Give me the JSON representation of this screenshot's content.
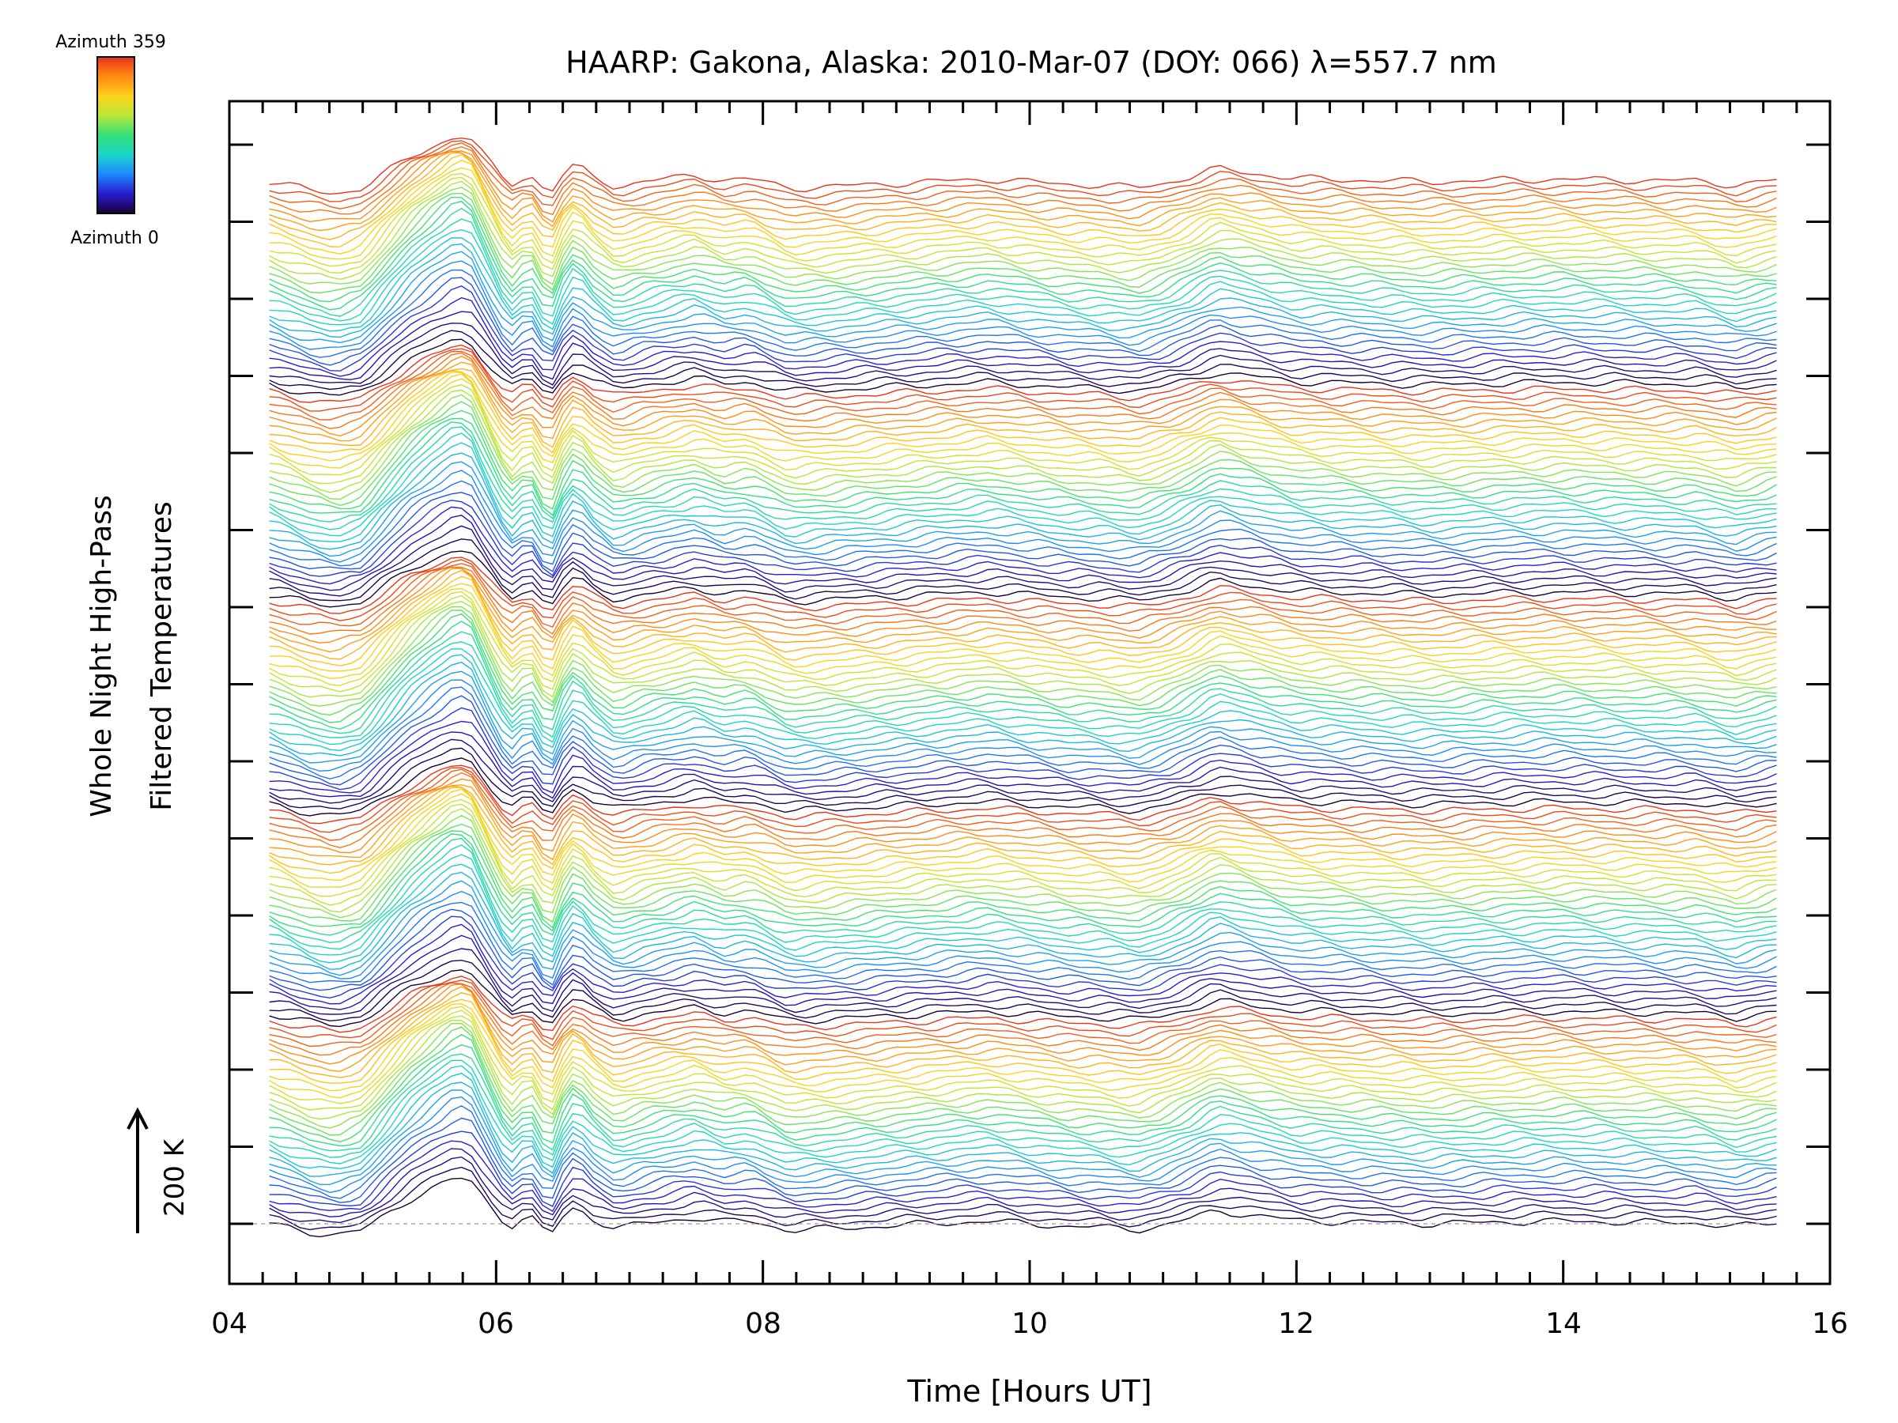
{
  "chart_data": {
    "type": "line",
    "title": "HAARP: Gakona,  Alaska: 2010-Mar-07 (DOY: 066) λ=557.7 nm",
    "xlabel": "Time [Hours UT]",
    "ylabel_line1": "Whole Night High-Pass",
    "ylabel_line2": "Filtered Temperatures",
    "xlim": [
      4,
      16
    ],
    "x_ticks": [
      "04",
      "06",
      "08",
      "10",
      "12",
      "14",
      "16"
    ],
    "scale_bar_label": "200 K",
    "colorbar": {
      "top_label": "Azimuth 359",
      "bottom_label": "Azimuth 0",
      "colormap": "rainbow",
      "stops": [
        "#1a0033",
        "#2a1bd0",
        "#1e88ff",
        "#19d6c8",
        "#33e07a",
        "#b8e838",
        "#ffd21a",
        "#ff8a14",
        "#e8341a"
      ]
    },
    "stack_count": 160,
    "azimuth_cycles": 5,
    "x_start": 4.3,
    "x_end": 15.6,
    "base_profile": {
      "x": [
        4.3,
        4.6,
        4.8,
        5.0,
        5.2,
        5.35,
        5.5,
        5.7,
        5.8,
        5.95,
        6.1,
        6.25,
        6.4,
        6.5,
        6.6,
        6.7,
        6.9,
        7.1,
        7.3,
        7.5,
        7.7,
        7.9,
        8.0,
        8.2,
        8.5,
        9.0,
        9.5,
        9.7,
        10.0,
        10.3,
        10.5,
        10.8,
        11.0,
        11.2,
        11.4,
        11.7,
        12.0,
        12.5,
        13.0,
        13.5,
        14.0,
        14.5,
        15.0,
        15.3,
        15.5,
        15.6
      ],
      "y": [
        0,
        -25,
        -35,
        -20,
        35,
        75,
        105,
        140,
        135,
        60,
        -10,
        25,
        -40,
        20,
        55,
        20,
        -15,
        0,
        10,
        20,
        5,
        10,
        0,
        -20,
        -15,
        -5,
        5,
        8,
        0,
        -8,
        -10,
        -18,
        -5,
        15,
        40,
        25,
        10,
        5,
        0,
        5,
        8,
        5,
        3,
        -10,
        0,
        5
      ]
    }
  }
}
